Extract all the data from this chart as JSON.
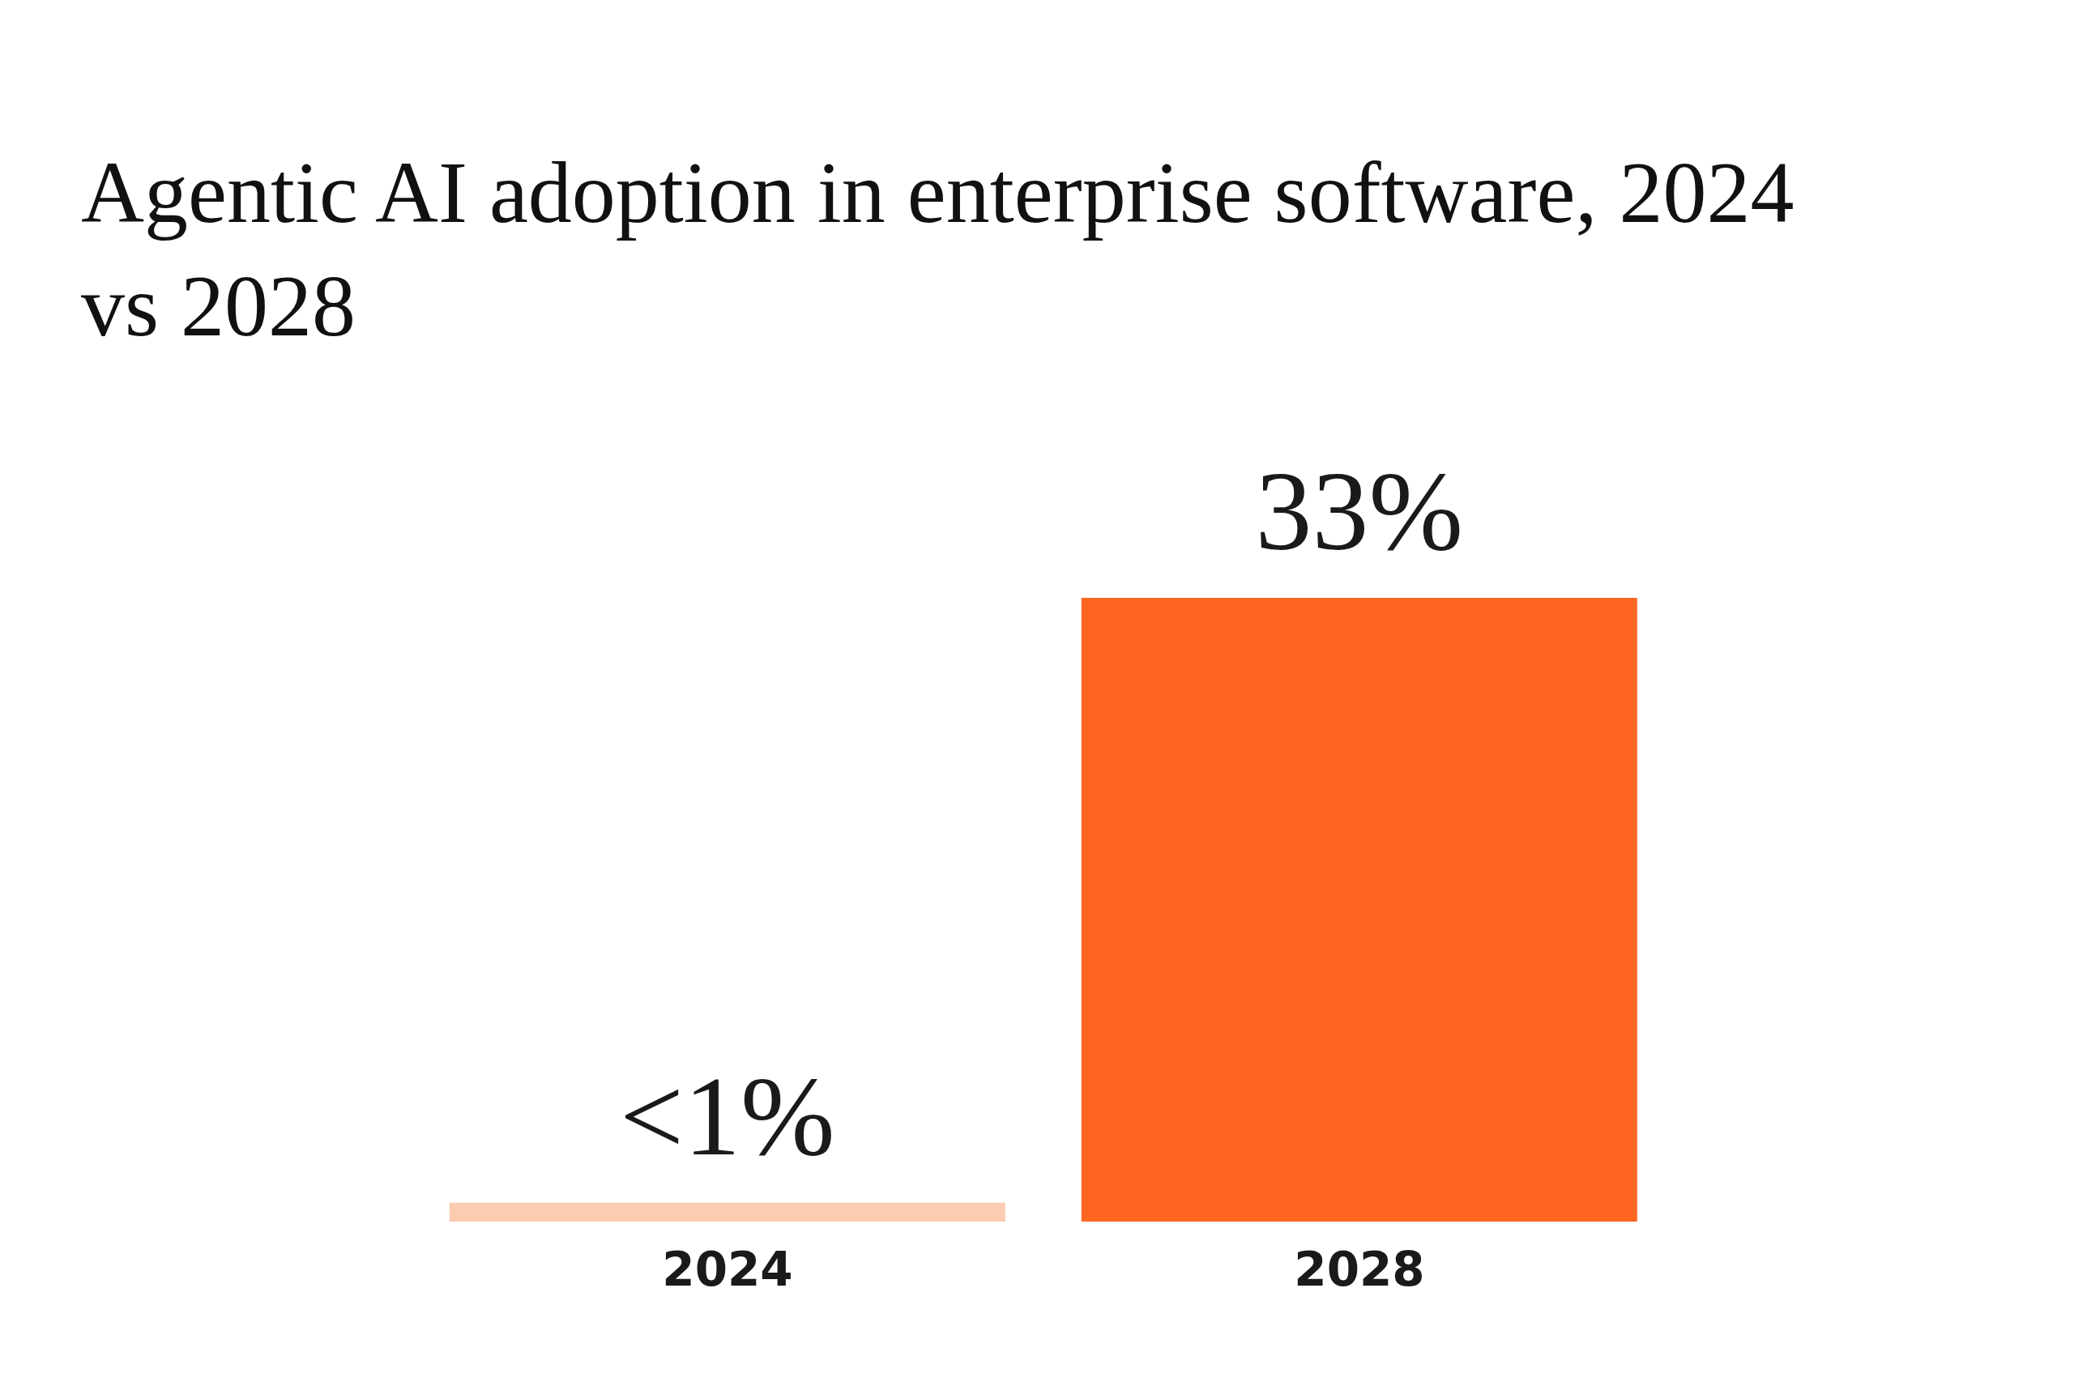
{
  "chart_data": {
    "type": "bar",
    "title": "Agentic AI adoption in enterprise software, 2024 vs 2028",
    "categories": [
      "2024",
      "2028"
    ],
    "values": [
      1,
      33
    ],
    "colors": [
      "#fccbb0",
      "#fe6621"
    ],
    "value_labels": [
      "<1%",
      "33%"
    ]
  }
}
